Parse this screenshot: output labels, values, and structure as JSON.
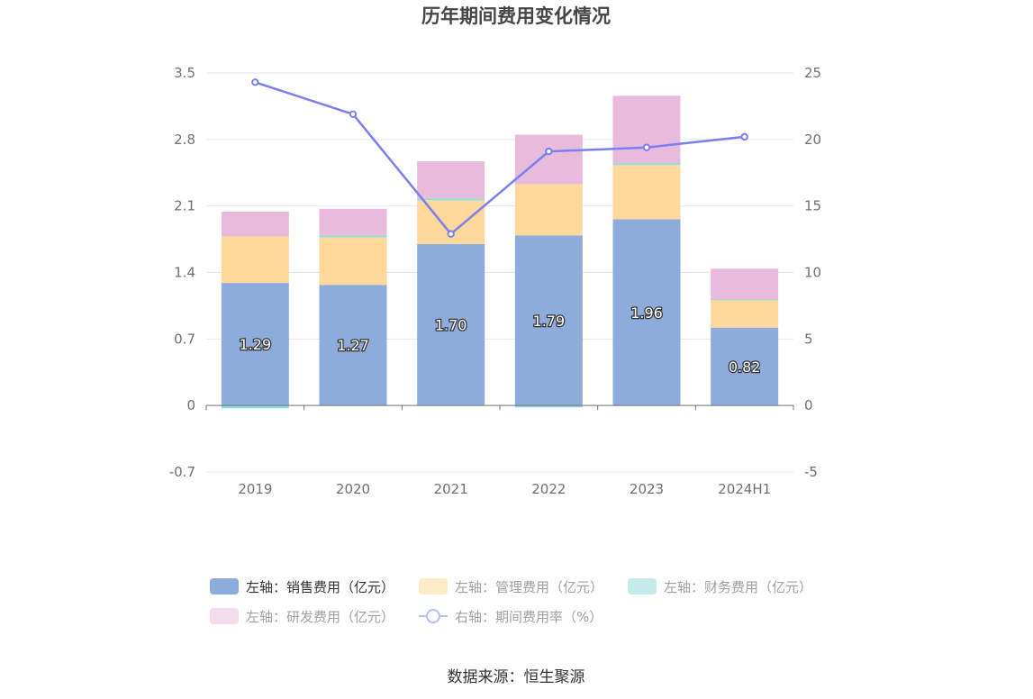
{
  "chart_data": {
    "type": "bar",
    "title": "历年期间费用变化情况",
    "categories": [
      "2019",
      "2020",
      "2021",
      "2022",
      "2023",
      "2024H1"
    ],
    "left_axis": {
      "ylim": [
        -0.7,
        3.5
      ],
      "ticks": [
        "-0.7",
        "0",
        "0.7",
        "1.4",
        "2.1",
        "2.8",
        "3.5"
      ]
    },
    "right_axis": {
      "ylim": [
        -5,
        25
      ],
      "ticks": [
        "-5",
        "0",
        "5",
        "10",
        "15",
        "20",
        "25"
      ]
    },
    "series": [
      {
        "name": "左轴：销售费用（亿元）",
        "kind": "bar",
        "stack": true,
        "color": "#8eacdb",
        "values": [
          1.29,
          1.27,
          1.7,
          1.79,
          1.96,
          0.82
        ],
        "labels": [
          "1.29",
          "1.27",
          "1.70",
          "1.79",
          "1.96",
          "0.82"
        ]
      },
      {
        "name": "左轴：管理费用（亿元）",
        "kind": "bar",
        "stack": true,
        "color": "#fed99b",
        "values": [
          0.49,
          0.5,
          0.46,
          0.54,
          0.57,
          0.29
        ]
      },
      {
        "name": "左轴：财务费用（亿元）",
        "kind": "bar",
        "stack": true,
        "color": "#8fdcdc",
        "values": [
          -0.03,
          0.02,
          0.02,
          -0.02,
          0.02,
          0.01
        ]
      },
      {
        "name": "左轴：研发费用（亿元）",
        "kind": "bar",
        "stack": true,
        "color": "#e8badb",
        "values": [
          0.26,
          0.28,
          0.39,
          0.52,
          0.71,
          0.32
        ]
      },
      {
        "name": "右轴：期间费用率（%）",
        "kind": "line",
        "axis": "right",
        "color": "#7b7ff0",
        "values": [
          24.3,
          21.9,
          12.9,
          19.1,
          19.4,
          20.2
        ]
      }
    ],
    "legend_placement": "bottom",
    "grid": true
  },
  "legend": {
    "items": [
      {
        "label": "左轴：销售费用（亿元）",
        "color": "#8eacdb",
        "shape": "rect",
        "active": true
      },
      {
        "label": "左轴：管理费用（亿元）",
        "color": "#fdebc8",
        "shape": "rect",
        "active": false
      },
      {
        "label": "左轴：财务费用（亿元）",
        "color": "#c6eaea",
        "shape": "rect",
        "active": false
      },
      {
        "label": "左轴：研发费用（亿元）",
        "color": "#f2dcec",
        "shape": "rect",
        "active": false
      },
      {
        "label": "右轴：期间费用率（%）",
        "color": "#b9bcf5",
        "shape": "line",
        "active": false
      }
    ]
  },
  "source": "数据来源：恒生聚源"
}
